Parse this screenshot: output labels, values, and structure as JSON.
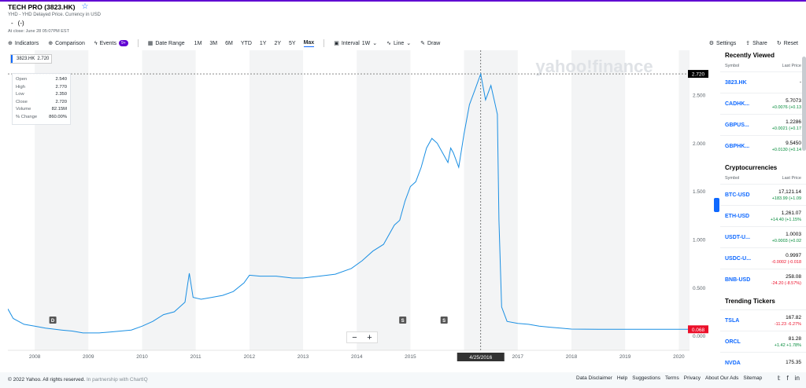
{
  "header": {
    "title": "TECH PRO (3823.HK)",
    "subtitle": "YHD - YHD Delayed Price. Currency in USD",
    "price": "-",
    "change": "(-)",
    "close_note": "At close: June 28 05:07PM EST"
  },
  "toolbar": {
    "indicators": "Indicators",
    "comparison": "Comparison",
    "events": "Events",
    "events_badge": "9+",
    "date_range": "Date Range",
    "ranges": [
      "1M",
      "3M",
      "6M",
      "YTD",
      "1Y",
      "2Y",
      "5Y",
      "Max"
    ],
    "active_range": "Max",
    "interval": "Interval",
    "interval_value": "1W",
    "line": "Line",
    "draw": "Draw",
    "settings": "Settings",
    "share": "Share",
    "reset": "Reset"
  },
  "tooltip": {
    "ticker": "3823.HK",
    "value": "2.720",
    "rows": [
      {
        "label": "Open",
        "value": "2.540"
      },
      {
        "label": "High",
        "value": "2.770"
      },
      {
        "label": "Low",
        "value": "2.350"
      },
      {
        "label": "Close",
        "value": "2.720"
      },
      {
        "label": "Volume",
        "value": "82.15M"
      },
      {
        "label": "% Change",
        "value": "860.00%"
      }
    ]
  },
  "chart_data": {
    "type": "line",
    "title": "",
    "xlabel": "",
    "ylabel": "",
    "ylim": [
      -0.15,
      2.9
    ],
    "xlim": [
      2007.5,
      2020.2
    ],
    "x_ticks": [
      "2008",
      "2009",
      "2010",
      "2011",
      "2012",
      "2013",
      "2014",
      "2015",
      "2016",
      "2017",
      "2018",
      "2019",
      "2020"
    ],
    "y_ticks": [
      "0.000",
      "0.500",
      "1.000",
      "1.500",
      "2.000",
      "2.500"
    ],
    "series": [
      {
        "color": "#1a8fe3",
        "x": [
          2007.5,
          2007.6,
          2007.8,
          2008.0,
          2008.2,
          2008.5,
          2008.7,
          2008.9,
          2009.2,
          2009.4,
          2009.6,
          2009.8,
          2010.0,
          2010.2,
          2010.4,
          2010.6,
          2010.8,
          2010.88,
          2010.95,
          2011.1,
          2011.3,
          2011.5,
          2011.7,
          2011.9,
          2012.0,
          2012.2,
          2012.5,
          2012.8,
          2013.0,
          2013.3,
          2013.6,
          2013.9,
          2014.1,
          2014.3,
          2014.5,
          2014.7,
          2014.8,
          2014.9,
          2015.0,
          2015.1,
          2015.2,
          2015.3,
          2015.4,
          2015.5,
          2015.6,
          2015.7,
          2015.75,
          2015.8,
          2015.9,
          2016.0,
          2016.1,
          2016.2,
          2016.31,
          2016.4,
          2016.5,
          2016.58,
          2016.62,
          2016.65,
          2016.7,
          2016.8,
          2017.0,
          2017.2,
          2017.4,
          2017.6,
          2017.8,
          2018.0,
          2018.5,
          2019.0,
          2019.5,
          2020.2
        ],
        "values": [
          0.28,
          0.18,
          0.12,
          0.1,
          0.08,
          0.06,
          0.05,
          0.03,
          0.03,
          0.04,
          0.05,
          0.06,
          0.1,
          0.15,
          0.22,
          0.25,
          0.35,
          0.65,
          0.4,
          0.38,
          0.4,
          0.42,
          0.46,
          0.55,
          0.63,
          0.62,
          0.62,
          0.6,
          0.6,
          0.62,
          0.64,
          0.7,
          0.78,
          0.88,
          0.95,
          1.15,
          1.2,
          1.4,
          1.55,
          1.6,
          1.75,
          1.95,
          2.05,
          2.0,
          1.9,
          1.8,
          1.95,
          1.9,
          1.75,
          2.1,
          2.4,
          2.55,
          2.72,
          2.45,
          2.6,
          2.4,
          2.3,
          1.2,
          0.3,
          0.15,
          0.13,
          0.12,
          0.1,
          0.09,
          0.08,
          0.07,
          0.068,
          0.068,
          0.068,
          0.068
        ]
      }
    ],
    "crosshair_date": "4/25/2016",
    "current_value_label": "2.720",
    "last_value_label": "0.068",
    "event_markers": [
      {
        "label": "D",
        "x": 2008.33
      },
      {
        "label": "S",
        "x": 2014.85
      },
      {
        "label": "S",
        "x": 2015.62
      }
    ],
    "watermark": "yahoo!finance"
  },
  "right_panel": {
    "recently_viewed": {
      "title": "Recently Viewed",
      "col_symbol": "Symbol",
      "col_price": "Last Price",
      "rows": [
        {
          "symbol": "3823.HK",
          "price": "-",
          "change": "",
          "dir": "none"
        },
        {
          "symbol": "CADHK...",
          "price": "5.7073",
          "change": "+0.0076 (+0.13",
          "dir": "pos"
        },
        {
          "symbol": "GBPUS...",
          "price": "1.2286",
          "change": "+0.0021 (+0.17",
          "dir": "pos"
        },
        {
          "symbol": "GBPHK...",
          "price": "9.5450",
          "change": "+0.0130 (+0.14",
          "dir": "pos"
        }
      ]
    },
    "crypto": {
      "title": "Cryptocurrencies",
      "col_symbol": "Symbol",
      "col_price": "Last Price",
      "rows": [
        {
          "symbol": "BTC-USD",
          "price": "17,121.14",
          "change": "+183.99 (+1.09",
          "dir": "pos"
        },
        {
          "symbol": "ETH-USD",
          "price": "1,261.07",
          "change": "+14.40 (+1.15%",
          "dir": "pos"
        },
        {
          "symbol": "USDT-U...",
          "price": "1.0003",
          "change": "+0.0003 (+0.02",
          "dir": "pos"
        },
        {
          "symbol": "USDC-U...",
          "price": "0.9997",
          "change": "-0.0002 (-0.018",
          "dir": "neg"
        },
        {
          "symbol": "BNB-USD",
          "price": "258.08",
          "change": "-24.20 (-8.57%)",
          "dir": "neg"
        }
      ]
    },
    "trending": {
      "title": "Trending Tickers",
      "rows": [
        {
          "symbol": "TSLA",
          "price": "167.82",
          "change": "-11.23 -6.27%",
          "dir": "neg"
        },
        {
          "symbol": "ORCL",
          "price": "81.28",
          "change": "+1.42 +1.78%",
          "dir": "pos"
        },
        {
          "symbol": "NVDA",
          "price": "175.35",
          "change": "",
          "dir": "none"
        }
      ]
    }
  },
  "footer": {
    "copyright": "© 2022 Yahoo. All rights reserved.",
    "partner": "In partnership with ChartIQ",
    "links": [
      "Data Disclaimer",
      "Help",
      "Suggestions",
      "Terms",
      "Privacy",
      "About Our Ads",
      "Sitemap"
    ]
  }
}
